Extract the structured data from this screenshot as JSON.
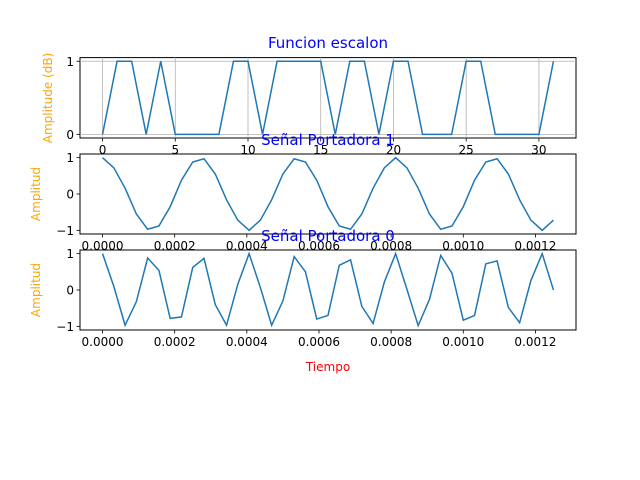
{
  "chart_data": [
    {
      "type": "line",
      "title": "Funcion escalon",
      "xlabel": "",
      "ylabel": "Amplitude (dB)",
      "xlim": [
        -1.55,
        32.55
      ],
      "ylim": [
        -0.05,
        1.05
      ],
      "xticks": [
        0,
        5,
        10,
        15,
        20,
        25,
        30
      ],
      "xtick_labels": [
        "0",
        "5",
        "10",
        "15",
        "20",
        "25",
        "30"
      ],
      "yticks": [
        0,
        1
      ],
      "ytick_labels": [
        "0",
        "1"
      ],
      "grid": true,
      "colors": {
        "line": "#1f77b4",
        "title": "#0000ff",
        "ylabel": "#ffa500",
        "grid": "#b0b0b0"
      },
      "series": [
        {
          "x": [
            0,
            1,
            2,
            3,
            4,
            5,
            6,
            7,
            8,
            9,
            10,
            11,
            12,
            13,
            14,
            15,
            16,
            17,
            18,
            19,
            20,
            21,
            22,
            23,
            24,
            25,
            26,
            27,
            28,
            29,
            30,
            31
          ],
          "values": [
            0,
            1,
            1,
            0,
            1,
            0,
            0,
            0,
            0,
            1,
            1,
            0,
            1,
            1,
            1,
            1,
            0,
            1,
            1,
            0,
            1,
            1,
            0,
            0,
            0,
            1,
            1,
            0,
            0,
            0,
            0,
            1
          ]
        }
      ]
    },
    {
      "type": "line",
      "title": "Señal Portadora 1",
      "xlabel": "",
      "ylabel": "Amplitud",
      "xlim": [
        -6.25e-05,
        0.0013125
      ],
      "ylim": [
        -1.1,
        1.1
      ],
      "xticks": [
        0,
        0.0002,
        0.0004,
        0.0006,
        0.0008,
        0.001,
        0.0012
      ],
      "xtick_labels": [
        "0.0000",
        "0.0002",
        "0.0004",
        "0.0006",
        "0.0008",
        "0.0010",
        "0.0012"
      ],
      "yticks": [
        -1,
        0,
        1
      ],
      "ytick_labels": [
        "−1",
        "0",
        "1"
      ],
      "grid": false,
      "colors": {
        "line": "#1f77b4",
        "title": "#0000ff",
        "ylabel": "#ffa500"
      },
      "series": [
        {
          "x_start": 0,
          "x_step": 3.125e-05,
          "values": [
            1.0,
            0.72,
            0.16,
            -0.55,
            -0.97,
            -0.88,
            -0.35,
            0.38,
            0.88,
            0.97,
            0.55,
            -0.16,
            -0.72,
            -1.0,
            -0.72,
            -0.16,
            0.55,
            0.97,
            0.88,
            0.38,
            -0.35,
            -0.88,
            -0.97,
            -0.55,
            0.16,
            0.72,
            1.0,
            0.72,
            0.16,
            -0.55,
            -0.97,
            -0.88,
            -0.35,
            0.38,
            0.88,
            0.97,
            0.55,
            -0.16,
            -0.72,
            -1.0,
            -0.72
          ]
        }
      ]
    },
    {
      "type": "line",
      "title": "Señal Portadora 0",
      "xlabel": "Tiempo",
      "ylabel": "Amplitud",
      "xlim": [
        -6.25e-05,
        0.0013125
      ],
      "ylim": [
        -1.1,
        1.1
      ],
      "xticks": [
        0,
        0.0002,
        0.0004,
        0.0006,
        0.0008,
        0.001,
        0.0012
      ],
      "xtick_labels": [
        "0.0000",
        "0.0002",
        "0.0004",
        "0.0006",
        "0.0008",
        "0.0010",
        "0.0012"
      ],
      "yticks": [
        -1,
        0,
        1
      ],
      "ytick_labels": [
        "−1",
        "0",
        "1"
      ],
      "grid": false,
      "colors": {
        "line": "#1f77b4",
        "title": "#0000ff",
        "ylabel": "#ffa500",
        "xlabel": "#ff0000"
      },
      "series": [
        {
          "x_start": 0,
          "x_step": 3.125e-05,
          "values": [
            1.0,
            0.1,
            -0.97,
            -0.32,
            0.88,
            0.54,
            -0.78,
            -0.74,
            0.62,
            0.87,
            -0.4,
            -0.97,
            0.16,
            1.0,
            0.07,
            -0.97,
            -0.3,
            0.92,
            0.5,
            -0.8,
            -0.7,
            0.68,
            0.83,
            -0.45,
            -0.92,
            0.22,
            1.0,
            0.02,
            -0.98,
            -0.26,
            0.95,
            0.46,
            -0.83,
            -0.7,
            0.72,
            0.8,
            -0.48,
            -0.9,
            0.26,
            1.0,
            0.0
          ]
        }
      ]
    }
  ]
}
